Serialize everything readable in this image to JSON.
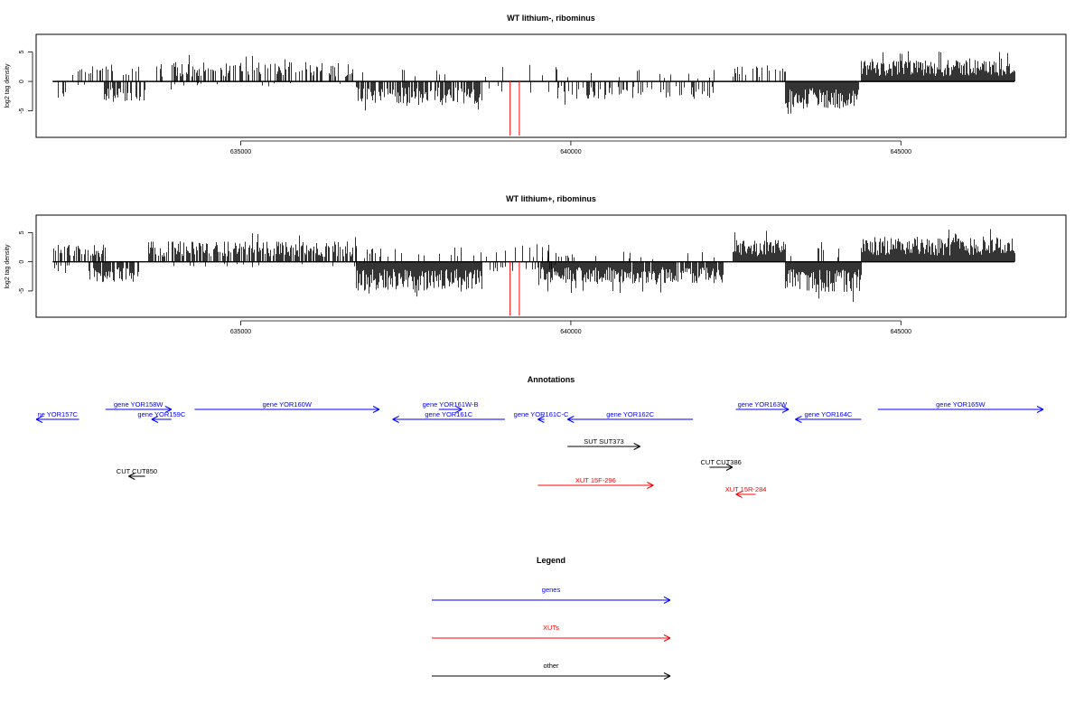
{
  "colors": {
    "gene": "#0000ff",
    "xut": "#ff0000",
    "other": "#000000",
    "marker": "#ff0000",
    "bar": "#000000"
  },
  "chart_data": [
    {
      "type": "bar",
      "title": "WT lithium-, ribominus",
      "ylabel": "log2 tag density",
      "xlim": [
        631900,
        647500
      ],
      "ylim": [
        -9.5,
        8
      ],
      "x_ticks": [
        635000,
        640000,
        645000
      ],
      "x_tick_labels": [
        "635000",
        "640000",
        "645000"
      ],
      "y_ticks": [
        -5,
        0,
        5
      ],
      "y_tick_labels": [
        "-5",
        "0",
        "5"
      ],
      "grid": false,
      "marker_lines_x": [
        639080,
        639220
      ],
      "segments": [
        {
          "start": 632150,
          "end": 632450,
          "density": 0.25,
          "sign": -1,
          "amp": 3.0
        },
        {
          "start": 632450,
          "end": 633050,
          "density": 0.35,
          "sign": 1,
          "amp": 3.0
        },
        {
          "start": 632450,
          "end": 632900,
          "density": 0.08,
          "sign": -1,
          "amp": 1.2
        },
        {
          "start": 632900,
          "end": 633550,
          "density": 0.55,
          "sign": -1,
          "amp": 3.5
        },
        {
          "start": 633050,
          "end": 633550,
          "density": 0.15,
          "sign": 1,
          "amp": 2.5
        },
        {
          "start": 633700,
          "end": 636700,
          "density": 0.5,
          "sign": 1,
          "amp": 3.3
        },
        {
          "start": 633700,
          "end": 636700,
          "density": 0.04,
          "sign": -1,
          "amp": 1.0
        },
        {
          "start": 636750,
          "end": 637400,
          "density": 0.05,
          "sign": 1,
          "amp": 1.5
        },
        {
          "start": 636750,
          "end": 638650,
          "density": 0.75,
          "sign": -1,
          "amp": 3.8
        },
        {
          "start": 637400,
          "end": 638650,
          "density": 0.07,
          "sign": 1,
          "amp": 2.5
        },
        {
          "start": 638700,
          "end": 639800,
          "density": 0.06,
          "sign": 1,
          "amp": 3.0
        },
        {
          "start": 638700,
          "end": 639800,
          "density": 0.05,
          "sign": -1,
          "amp": 2.0
        },
        {
          "start": 639800,
          "end": 642200,
          "density": 0.3,
          "sign": -1,
          "amp": 3.0
        },
        {
          "start": 639800,
          "end": 642200,
          "density": 0.08,
          "sign": 1,
          "amp": 2.0
        },
        {
          "start": 642450,
          "end": 643250,
          "density": 0.3,
          "sign": 1,
          "amp": 2.8
        },
        {
          "start": 643250,
          "end": 644350,
          "density": 1.0,
          "sign": -1,
          "amp": 4.5
        },
        {
          "start": 643250,
          "end": 644350,
          "density": 0.03,
          "sign": 1,
          "amp": 1.0
        },
        {
          "start": 644400,
          "end": 646720,
          "density": 1.0,
          "sign": 1,
          "amp": 3.6
        }
      ]
    },
    {
      "type": "bar",
      "title": "WT lithium+, ribominus",
      "ylabel": "log2 tag density",
      "xlim": [
        631900,
        647500
      ],
      "ylim": [
        -9.5,
        8
      ],
      "x_ticks": [
        635000,
        640000,
        645000
      ],
      "x_tick_labels": [
        "635000",
        "640000",
        "645000"
      ],
      "y_ticks": [
        -5,
        0,
        5
      ],
      "y_tick_labels": [
        "-5",
        "0",
        "5"
      ],
      "grid": false,
      "marker_lines_x": [
        639080,
        639220
      ],
      "segments": [
        {
          "start": 632150,
          "end": 633000,
          "density": 0.45,
          "sign": 1,
          "amp": 3.0
        },
        {
          "start": 632150,
          "end": 632400,
          "density": 0.3,
          "sign": -1,
          "amp": 2.0
        },
        {
          "start": 632700,
          "end": 633450,
          "density": 0.75,
          "sign": -1,
          "amp": 3.5
        },
        {
          "start": 633600,
          "end": 636750,
          "density": 0.75,
          "sign": 1,
          "amp": 3.5
        },
        {
          "start": 633600,
          "end": 636750,
          "density": 0.04,
          "sign": -1,
          "amp": 1.0
        },
        {
          "start": 636750,
          "end": 638650,
          "density": 1.0,
          "sign": -1,
          "amp": 5.0
        },
        {
          "start": 636750,
          "end": 638650,
          "density": 0.1,
          "sign": 1,
          "amp": 2.5
        },
        {
          "start": 638700,
          "end": 639800,
          "density": 0.15,
          "sign": 1,
          "amp": 3.0
        },
        {
          "start": 638700,
          "end": 639800,
          "density": 0.15,
          "sign": -1,
          "amp": 2.0
        },
        {
          "start": 639500,
          "end": 642300,
          "density": 0.95,
          "sign": -1,
          "amp": 3.7
        },
        {
          "start": 639500,
          "end": 642300,
          "density": 0.12,
          "sign": 1,
          "amp": 1.8
        },
        {
          "start": 642450,
          "end": 643250,
          "density": 1.0,
          "sign": 1,
          "amp": 3.8
        },
        {
          "start": 643250,
          "end": 644400,
          "density": 1.0,
          "sign": -1,
          "amp": 5.2
        },
        {
          "start": 643250,
          "end": 644400,
          "density": 0.1,
          "sign": 1,
          "amp": 2.5
        },
        {
          "start": 644400,
          "end": 646720,
          "density": 1.0,
          "sign": 1,
          "amp": 4.3
        }
      ]
    }
  ],
  "annotations": {
    "title": "Annotations",
    "xlim": [
      631900,
      647500
    ],
    "features": [
      {
        "label": "ne YOR157C",
        "type": "gene",
        "start": 631900,
        "end": 632550,
        "strand": "-",
        "row": 1
      },
      {
        "label": "gene YOR158W",
        "type": "gene",
        "start": 632950,
        "end": 633950,
        "strand": "+",
        "row": 0
      },
      {
        "label": "gene YOR159C",
        "type": "gene",
        "start": 633650,
        "end": 633950,
        "strand": "-",
        "row": 1
      },
      {
        "label": "gene YOR160W",
        "type": "gene",
        "start": 634300,
        "end": 637100,
        "strand": "+",
        "row": 0
      },
      {
        "label": "gene YOR161C",
        "type": "gene",
        "start": 637300,
        "end": 639000,
        "strand": "-",
        "row": 1
      },
      {
        "label": "gene YOR161W-B",
        "type": "gene",
        "start": 638000,
        "end": 638350,
        "strand": "+",
        "row": 0
      },
      {
        "label": "gene YOR161C-C",
        "type": "gene",
        "start": 639500,
        "end": 639600,
        "strand": "-",
        "row": 1
      },
      {
        "label": "gene YOR162C",
        "type": "gene",
        "start": 639950,
        "end": 641850,
        "strand": "-",
        "row": 1
      },
      {
        "label": "gene YOR163W",
        "type": "gene",
        "start": 642500,
        "end": 643300,
        "strand": "+",
        "row": 0
      },
      {
        "label": "gene YOR164C",
        "type": "gene",
        "start": 643400,
        "end": 644400,
        "strand": "-",
        "row": 1
      },
      {
        "label": "gene YOR165W",
        "type": "gene",
        "start": 644650,
        "end": 647200,
        "strand": "+",
        "row": 0
      },
      {
        "label": "SUT SUT373",
        "type": "other",
        "start": 639950,
        "end": 641050,
        "strand": "+",
        "row": 2
      },
      {
        "label": "CUT CUT386",
        "type": "other",
        "start": 642100,
        "end": 642450,
        "strand": "+",
        "row": 3
      },
      {
        "label": "CUT CUT850",
        "type": "other",
        "start": 633300,
        "end": 633550,
        "strand": "-",
        "row": 4
      },
      {
        "label": "XUT 15F-296",
        "type": "xut",
        "start": 639500,
        "end": 641250,
        "strand": "+",
        "row": 5
      },
      {
        "label": "XUT 15R-284",
        "type": "xut",
        "start": 642500,
        "end": 642800,
        "strand": "-",
        "row": 6
      }
    ]
  },
  "legend": {
    "title": "Legend",
    "entries": [
      {
        "label": "genes",
        "type": "gene"
      },
      {
        "label": "XUTs",
        "type": "xut"
      },
      {
        "label": "other",
        "type": "other"
      }
    ]
  }
}
